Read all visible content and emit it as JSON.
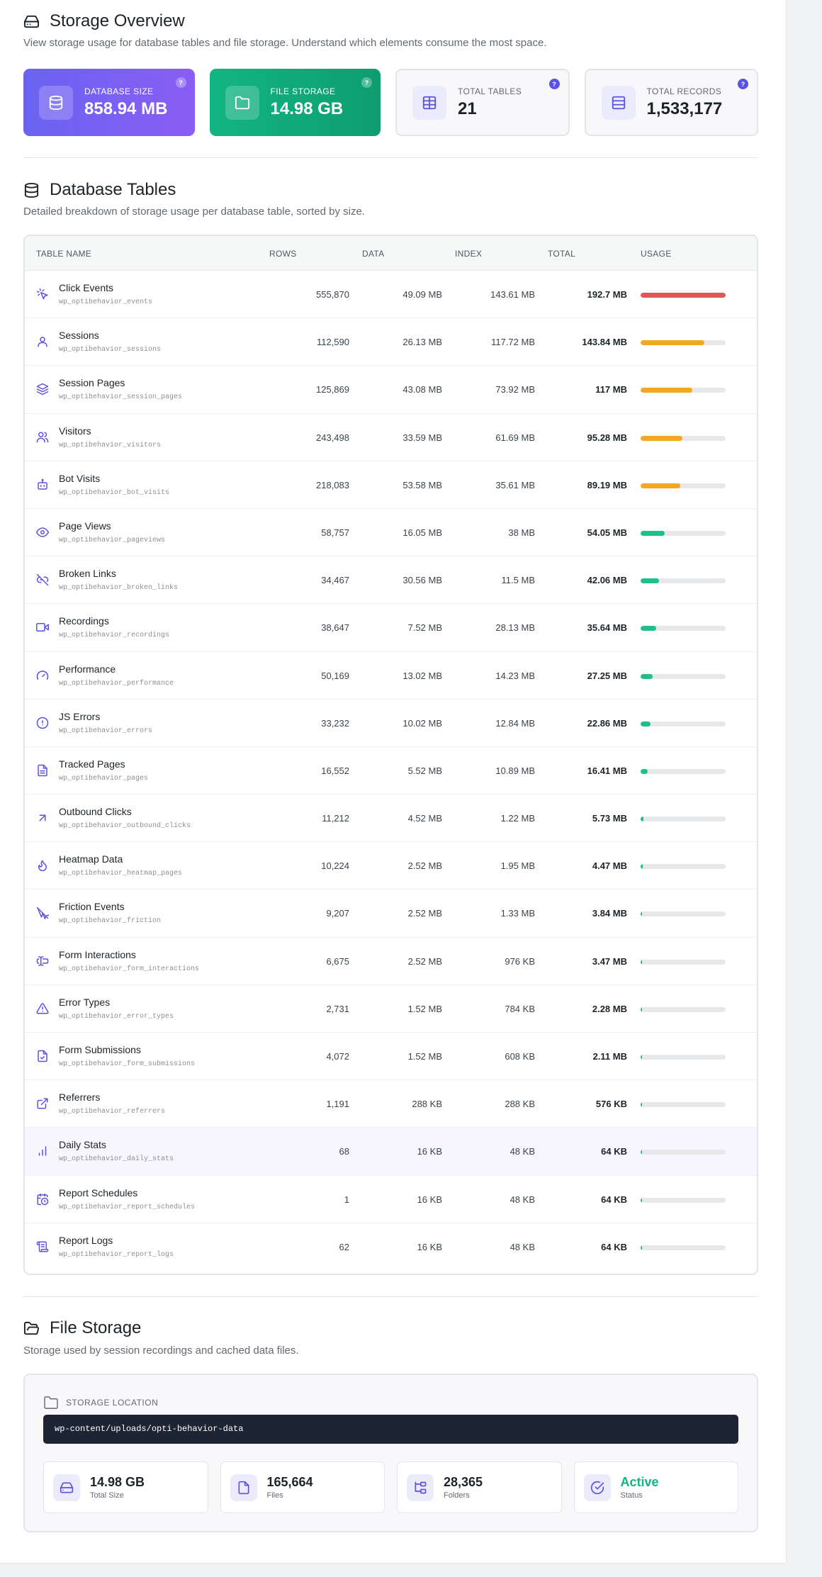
{
  "overview": {
    "title": "Storage Overview",
    "desc": "View storage usage for database tables and file storage. Understand which elements consume the most space.",
    "cards": [
      {
        "label": "DATABASE SIZE",
        "value": "858.94 MB",
        "icon": "database-icon",
        "help": "?"
      },
      {
        "label": "FILE STORAGE",
        "value": "14.98 GB",
        "icon": "folder-icon",
        "help": "?"
      },
      {
        "label": "TOTAL TABLES",
        "value": "21",
        "icon": "table-icon",
        "help": "?"
      },
      {
        "label": "TOTAL RECORDS",
        "value": "1,533,177",
        "icon": "records-icon",
        "help": "?"
      }
    ]
  },
  "tables": {
    "title": "Database Tables",
    "desc": "Detailed breakdown of storage usage per database table, sorted by size.",
    "headers": {
      "name": "TABLE NAME",
      "rows": "ROWS",
      "data": "DATA",
      "index": "INDEX",
      "total": "TOTAL",
      "usage": "USAGE"
    },
    "rows": [
      {
        "name": "Click Events",
        "slug": "wp_optibehavior_events",
        "rows": "555,870",
        "data": "49.09 MB",
        "index": "143.61 MB",
        "total": "192.7 MB",
        "usage": 100,
        "color": "#e15759",
        "icon": "cursor-click-icon"
      },
      {
        "name": "Sessions",
        "slug": "wp_optibehavior_sessions",
        "rows": "112,590",
        "data": "26.13 MB",
        "index": "117.72 MB",
        "total": "143.84 MB",
        "usage": 74.6,
        "color": "#f5a623",
        "icon": "user-icon"
      },
      {
        "name": "Session Pages",
        "slug": "wp_optibehavior_session_pages",
        "rows": "125,869",
        "data": "43.08 MB",
        "index": "73.92 MB",
        "total": "117 MB",
        "usage": 60.7,
        "color": "#f5a623",
        "icon": "layers-icon"
      },
      {
        "name": "Visitors",
        "slug": "wp_optibehavior_visitors",
        "rows": "243,498",
        "data": "33.59 MB",
        "index": "61.69 MB",
        "total": "95.28 MB",
        "usage": 49.4,
        "color": "#f5a623",
        "icon": "users-icon"
      },
      {
        "name": "Bot Visits",
        "slug": "wp_optibehavior_bot_visits",
        "rows": "218,083",
        "data": "53.58 MB",
        "index": "35.61 MB",
        "total": "89.19 MB",
        "usage": 46.3,
        "color": "#f5a623",
        "icon": "bot-icon"
      },
      {
        "name": "Page Views",
        "slug": "wp_optibehavior_pageviews",
        "rows": "58,757",
        "data": "16.05 MB",
        "index": "38 MB",
        "total": "54.05 MB",
        "usage": 28.0,
        "color": "#1cc08a",
        "icon": "eye-icon"
      },
      {
        "name": "Broken Links",
        "slug": "wp_optibehavior_broken_links",
        "rows": "34,467",
        "data": "30.56 MB",
        "index": "11.5 MB",
        "total": "42.06 MB",
        "usage": 21.8,
        "color": "#1cc08a",
        "icon": "broken-link-icon"
      },
      {
        "name": "Recordings",
        "slug": "wp_optibehavior_recordings",
        "rows": "38,647",
        "data": "7.52 MB",
        "index": "28.13 MB",
        "total": "35.64 MB",
        "usage": 18.5,
        "color": "#1cc08a",
        "icon": "video-icon"
      },
      {
        "name": "Performance",
        "slug": "wp_optibehavior_performance",
        "rows": "50,169",
        "data": "13.02 MB",
        "index": "14.23 MB",
        "total": "27.25 MB",
        "usage": 14.1,
        "color": "#1cc08a",
        "icon": "gauge-icon"
      },
      {
        "name": "JS Errors",
        "slug": "wp_optibehavior_errors",
        "rows": "33,232",
        "data": "10.02 MB",
        "index": "12.84 MB",
        "total": "22.86 MB",
        "usage": 11.9,
        "color": "#1cc08a",
        "icon": "alert-circle-icon"
      },
      {
        "name": "Tracked Pages",
        "slug": "wp_optibehavior_pages",
        "rows": "16,552",
        "data": "5.52 MB",
        "index": "10.89 MB",
        "total": "16.41 MB",
        "usage": 8.5,
        "color": "#1cc08a",
        "icon": "file-text-icon"
      },
      {
        "name": "Outbound Clicks",
        "slug": "wp_optibehavior_outbound_clicks",
        "rows": "11,212",
        "data": "4.52 MB",
        "index": "1.22 MB",
        "total": "5.73 MB",
        "usage": 3.0,
        "color": "#1cc08a",
        "icon": "arrow-up-right-icon"
      },
      {
        "name": "Heatmap Data",
        "slug": "wp_optibehavior_heatmap_pages",
        "rows": "10,224",
        "data": "2.52 MB",
        "index": "1.95 MB",
        "total": "4.47 MB",
        "usage": 2.3,
        "color": "#1cc08a",
        "icon": "flame-icon"
      },
      {
        "name": "Friction Events",
        "slug": "wp_optibehavior_friction",
        "rows": "9,207",
        "data": "2.52 MB",
        "index": "1.33 MB",
        "total": "3.84 MB",
        "usage": 2.0,
        "color": "#1cc08a",
        "icon": "cursor-off-icon"
      },
      {
        "name": "Form Interactions",
        "slug": "wp_optibehavior_form_interactions",
        "rows": "6,675",
        "data": "2.52 MB",
        "index": "976 KB",
        "total": "3.47 MB",
        "usage": 1.8,
        "color": "#1cc08a",
        "icon": "text-cursor-input-icon"
      },
      {
        "name": "Error Types",
        "slug": "wp_optibehavior_error_types",
        "rows": "2,731",
        "data": "1.52 MB",
        "index": "784 KB",
        "total": "2.28 MB",
        "usage": 1.2,
        "color": "#1cc08a",
        "icon": "alert-triangle-icon"
      },
      {
        "name": "Form Submissions",
        "slug": "wp_optibehavior_form_submissions",
        "rows": "4,072",
        "data": "1.52 MB",
        "index": "608 KB",
        "total": "2.11 MB",
        "usage": 1.1,
        "color": "#1cc08a",
        "icon": "file-check-icon"
      },
      {
        "name": "Referrers",
        "slug": "wp_optibehavior_referrers",
        "rows": "1,191",
        "data": "288 KB",
        "index": "288 KB",
        "total": "576 KB",
        "usage": 0.3,
        "color": "#1cc08a",
        "icon": "external-link-icon"
      },
      {
        "name": "Daily Stats",
        "slug": "wp_optibehavior_daily_stats",
        "rows": "68",
        "data": "16 KB",
        "index": "48 KB",
        "total": "64 KB",
        "usage": 0.03,
        "color": "#1cc08a",
        "icon": "bar-chart-icon"
      },
      {
        "name": "Report Schedules",
        "slug": "wp_optibehavior_report_schedules",
        "rows": "1",
        "data": "16 KB",
        "index": "48 KB",
        "total": "64 KB",
        "usage": 0.03,
        "color": "#1cc08a",
        "icon": "calendar-clock-icon"
      },
      {
        "name": "Report Logs",
        "slug": "wp_optibehavior_report_logs",
        "rows": "62",
        "data": "16 KB",
        "index": "48 KB",
        "total": "64 KB",
        "usage": 0.03,
        "color": "#1cc08a",
        "icon": "scroll-text-icon"
      }
    ]
  },
  "files": {
    "title": "File Storage",
    "desc": "Storage used by session recordings and cached data files.",
    "location_label": "STORAGE LOCATION",
    "path": "wp-content/uploads/opti-behavior-data",
    "stats": [
      {
        "value": "14.98 GB",
        "label": "Total Size",
        "icon": "hard-drive-icon"
      },
      {
        "value": "165,664",
        "label": "Files",
        "icon": "file-icon"
      },
      {
        "value": "28,365",
        "label": "Folders",
        "icon": "folder-tree-icon"
      },
      {
        "value": "Active",
        "label": "Status",
        "icon": "check-circle-icon"
      }
    ]
  }
}
